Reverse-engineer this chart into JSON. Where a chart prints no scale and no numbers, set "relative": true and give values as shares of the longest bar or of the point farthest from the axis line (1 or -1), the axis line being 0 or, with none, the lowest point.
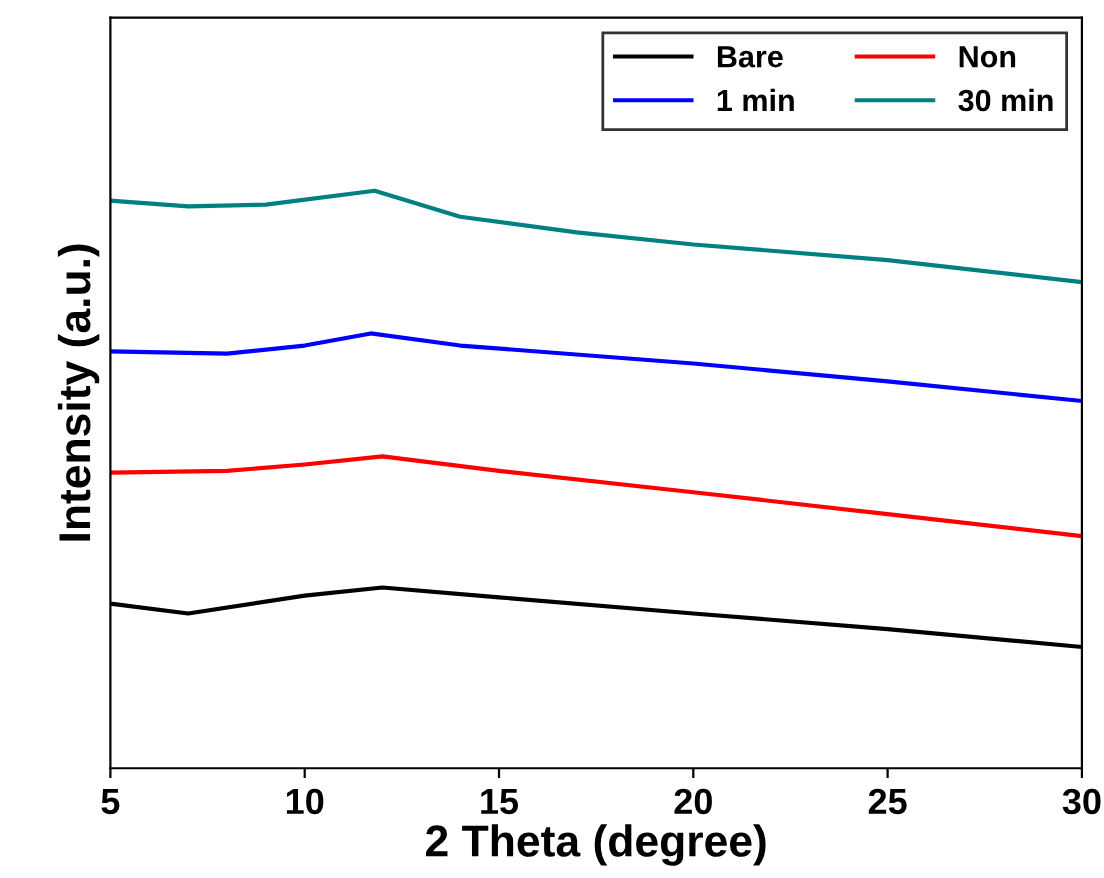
{
  "chart_data": {
    "type": "line",
    "xlabel": "2 Theta (degree)",
    "ylabel": "Intensity (a.u.)",
    "relative": true,
    "xlim": [
      5,
      30
    ],
    "xticks": [
      5,
      10,
      15,
      20,
      25,
      30
    ],
    "legend": "top right",
    "grid": false,
    "series": [
      {
        "name": "Bare",
        "color": "#000000",
        "x": [
          5,
          7,
          10,
          12,
          15,
          20,
          25,
          30
        ],
        "values": [
          0.285,
          0.268,
          0.299,
          0.313,
          0.296,
          0.268,
          0.241,
          0.21
        ]
      },
      {
        "name": "Non",
        "color": "#ff0000",
        "x": [
          5,
          8,
          10,
          12,
          15,
          20,
          25,
          30
        ],
        "values": [
          0.512,
          0.515,
          0.526,
          0.54,
          0.515,
          0.478,
          0.44,
          0.402
        ]
      },
      {
        "name": "1 min",
        "color": "#0000ff",
        "x": [
          5,
          8,
          10,
          11.7,
          14,
          20,
          25,
          30
        ],
        "values": [
          0.722,
          0.718,
          0.732,
          0.753,
          0.732,
          0.701,
          0.67,
          0.636
        ]
      },
      {
        "name": "30 min",
        "color": "#008080",
        "x": [
          5,
          7,
          9,
          11.8,
          14,
          17,
          20,
          25,
          30
        ],
        "values": [
          0.983,
          0.973,
          0.976,
          1.0,
          0.955,
          0.928,
          0.907,
          0.88,
          0.842
        ]
      }
    ]
  }
}
